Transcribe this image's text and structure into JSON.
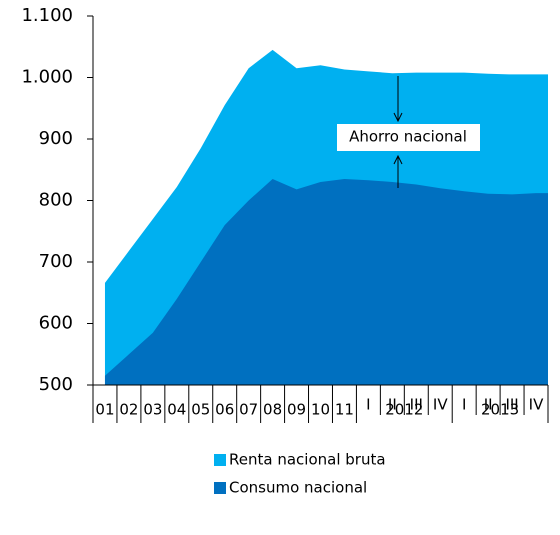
{
  "chart_data": {
    "type": "area",
    "categories": [
      "01",
      "02",
      "03",
      "04",
      "05",
      "06",
      "07",
      "08",
      "09",
      "10",
      "11",
      "I",
      "II",
      "III",
      "IV",
      "I",
      "II",
      "III",
      "IV"
    ],
    "x_groups": [
      "2012",
      "2013"
    ],
    "series": [
      {
        "name": "Renta nacional bruta",
        "color": "#00b0f0",
        "values": [
          666,
          718,
          770,
          822,
          885,
          955,
          1015,
          1045,
          1015,
          1020,
          1013,
          1010,
          1007,
          1008,
          1008,
          1008,
          1006,
          1005,
          1005
        ]
      },
      {
        "name": "Consumo nacional",
        "color": "#0070c0",
        "values": [
          515,
          550,
          585,
          640,
          700,
          760,
          800,
          835,
          818,
          830,
          835,
          833,
          830,
          826,
          820,
          815,
          811,
          810,
          812
        ]
      }
    ],
    "annotation": "Ahorro nacional",
    "ylim": [
      500,
      1100
    ],
    "yticks": [
      500,
      600,
      700,
      800,
      900,
      {
        "value": 1000,
        "label": "1.000"
      },
      {
        "value": 1100,
        "label": "1.100"
      }
    ]
  }
}
